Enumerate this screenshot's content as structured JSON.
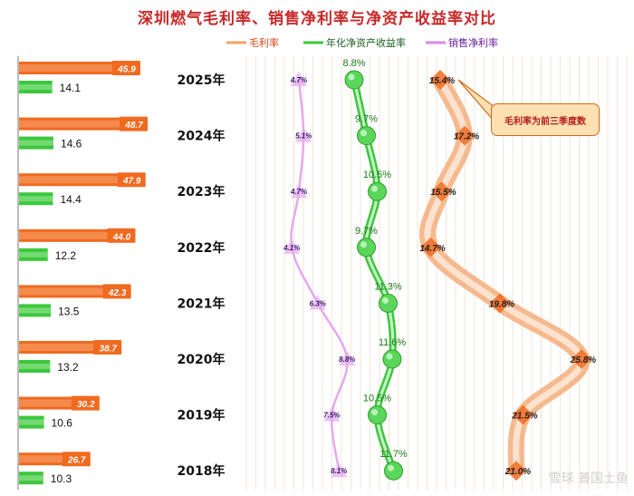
{
  "chart_data": {
    "type": "bar-line-combo",
    "title": "深圳燃气毛利率、销售净利率与净资产收益率对比",
    "years": [
      "2025年",
      "2024年",
      "2023年",
      "2022年",
      "2021年",
      "2020年",
      "2019年",
      "2018年"
    ],
    "series": [
      {
        "name": "毛利率",
        "values": [
          15.4,
          17.2,
          15.5,
          14.7,
          19.8,
          25.8,
          21.5,
          21.0
        ],
        "color": "#f2a36a"
      },
      {
        "name": "年化净资产收益率",
        "values": [
          8.8,
          9.7,
          10.5,
          9.7,
          11.3,
          11.6,
          10.5,
          11.7
        ],
        "color": "#3cc83c"
      },
      {
        "name": "销售净利率",
        "values": [
          4.7,
          5.1,
          4.7,
          4.1,
          6.3,
          8.8,
          7.5,
          8.1
        ],
        "color": "#e6a8ee"
      }
    ],
    "left_bars": {
      "orange": [
        45.9,
        48.7,
        47.9,
        44.0,
        42.3,
        38.7,
        30.2,
        26.7
      ],
      "green": [
        14.1,
        14.6,
        14.4,
        12.2,
        13.5,
        13.2,
        10.6,
        10.3
      ]
    },
    "annotation": "毛利率为前三季度数",
    "legend_position": "top"
  },
  "legend": {
    "gross": "毛利率",
    "roe": "年化净资产收益率",
    "npm": "销售净利率"
  },
  "watermark": "雪球 普国土鱼",
  "colors": {
    "title": "#c62828",
    "orange": "#f2a36a",
    "orange_dark": "#f06a20",
    "green": "#3cc83c",
    "purple": "#d98ae6"
  }
}
